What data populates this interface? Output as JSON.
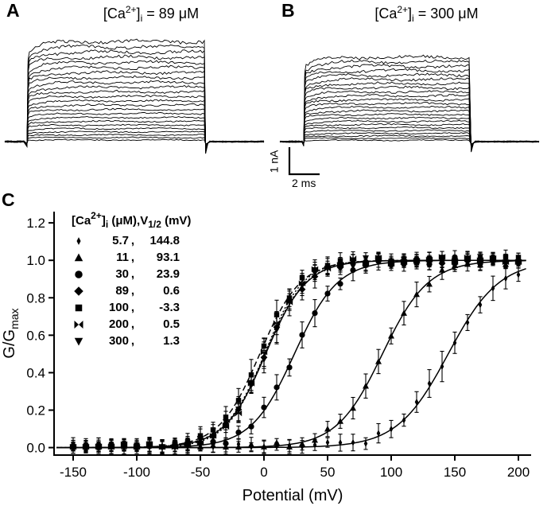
{
  "panels": [
    {
      "label": "A",
      "ca_open": "[Ca",
      "ca_sup": "2+",
      "ca_close": "]",
      "ca_sub": "i",
      "eq": " = ",
      "conc": "89",
      "unit": " μM"
    },
    {
      "label": "B",
      "ca_open": "[Ca",
      "ca_sup": "2+",
      "ca_close": "]",
      "ca_sub": "i",
      "eq": " = ",
      "conc": "300",
      "unit": " μM"
    }
  ],
  "scalebar": {
    "current": "1 nA",
    "time": "2 ms"
  },
  "panel_c": {
    "label": "C"
  },
  "chart_data": {
    "type": "scatter",
    "model": "boltzmann",
    "xlabel": "Potential (mV)",
    "ylabel": "G/Gmax",
    "ylabel_main": "G/G",
    "ylabel_sub": "max",
    "xlim": [
      -165,
      210
    ],
    "ylim": [
      -0.04,
      1.26
    ],
    "xticks": [
      -150,
      -100,
      -50,
      0,
      50,
      100,
      150,
      200
    ],
    "yticks": [
      0,
      0.2,
      0.4,
      0.6,
      0.8,
      1,
      1.2
    ],
    "x_range": [
      -150,
      200
    ],
    "x_step": 10,
    "legend": {
      "ca_open": "[Ca",
      "ca_sup": "2+",
      "ca_close": "]",
      "ca_sub": "i",
      "mid": " (μM),V",
      "v_sub": "1/2",
      "tail": " (mV)",
      "comma": ","
    },
    "series": [
      {
        "conc": "5.7",
        "v_half": 144.8,
        "v_half_label": "144.8",
        "slope": 20,
        "marker": "thin-diamond",
        "line": "solid"
      },
      {
        "conc": "11",
        "v_half": 93.1,
        "v_half_label": "93.1",
        "slope": 18,
        "marker": "triangle-up",
        "line": "solid"
      },
      {
        "conc": "30",
        "v_half": 23.9,
        "v_half_label": "23.9",
        "slope": 17,
        "marker": "circle",
        "line": "solid"
      },
      {
        "conc": "89",
        "v_half": 0.6,
        "v_half_label": "0.6",
        "slope": 16,
        "marker": "diamond",
        "line": "dotted"
      },
      {
        "conc": "100",
        "v_half": -3.3,
        "v_half_label": "-3.3",
        "slope": 16,
        "marker": "square",
        "line": "dashed"
      },
      {
        "conc": "200",
        "v_half": 0.5,
        "v_half_label": "0.5",
        "slope": 15,
        "marker": "bowtie",
        "line": "dotted"
      },
      {
        "conc": "300",
        "v_half": 1.3,
        "v_half_label": "1.3",
        "slope": 16,
        "marker": "triangle-down",
        "line": "solid"
      }
    ]
  }
}
